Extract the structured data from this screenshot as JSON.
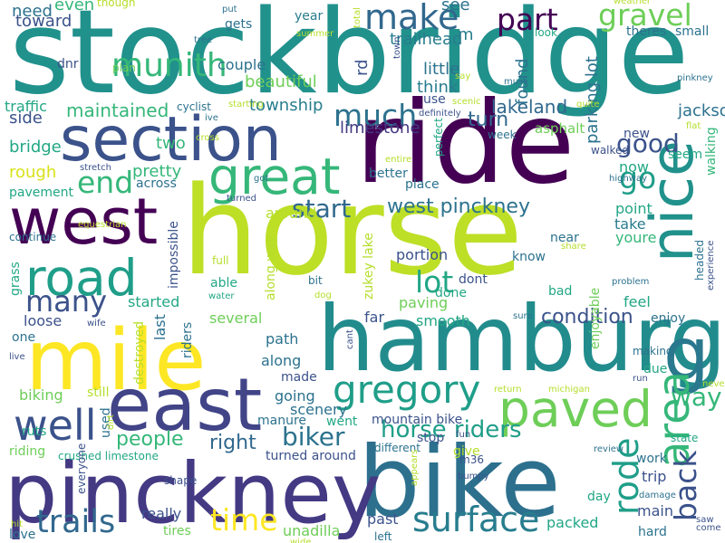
{
  "words": [
    {
      "text": "stockbridge",
      "color": "#21918c"
    },
    {
      "text": "horse",
      "color": "#bddf26"
    },
    {
      "text": "ride",
      "color": "#440154"
    },
    {
      "text": "hamburg",
      "color": "#228c8d"
    },
    {
      "text": "mile",
      "color": "#fde725"
    },
    {
      "text": "bike",
      "color": "#2d708e"
    },
    {
      "text": "pinckney",
      "color": "#443983"
    },
    {
      "text": "section",
      "color": "#3b528b"
    },
    {
      "text": "west",
      "color": "#440154"
    },
    {
      "text": "east",
      "color": "#414487"
    },
    {
      "text": "road",
      "color": "#1f9e89"
    },
    {
      "text": "nice",
      "color": "#21918c"
    },
    {
      "text": "g",
      "color": "#2a788e"
    },
    {
      "text": "great",
      "color": "#35b779"
    },
    {
      "text": "paved",
      "color": "#6ece58"
    },
    {
      "text": "gregory",
      "color": "#1f9e89"
    },
    {
      "text": "munith",
      "color": "#35b779"
    },
    {
      "text": "area",
      "color": "#35b779"
    },
    {
      "text": "well",
      "color": "#3b528b"
    },
    {
      "text": "rode",
      "color": "#1f9e89"
    },
    {
      "text": "surface",
      "color": "#287d8e"
    },
    {
      "text": "trails",
      "color": "#31688e"
    },
    {
      "text": "time",
      "color": "#fde725"
    },
    {
      "text": "make",
      "color": "#31688e"
    },
    {
      "text": "part",
      "color": "#440154"
    },
    {
      "text": "gravel",
      "color": "#6ece58"
    },
    {
      "text": "much",
      "color": "#2c728e"
    },
    {
      "text": "back",
      "color": "#3b528b"
    },
    {
      "text": "end",
      "color": "#35b779"
    },
    {
      "text": "go",
      "color": "#1f9e89"
    },
    {
      "text": "good",
      "color": "#3b528b"
    },
    {
      "text": "way",
      "color": "#35b779"
    },
    {
      "text": "horse riders",
      "color": "#1f9e89"
    },
    {
      "text": "biker",
      "color": "#2c728e"
    },
    {
      "text": "start",
      "color": "#31688e"
    },
    {
      "text": "lot",
      "color": "#22a785"
    },
    {
      "text": "many",
      "color": "#3b528b"
    },
    {
      "text": "west pinckney",
      "color": "#2c728e"
    },
    {
      "text": "condition",
      "color": "#3b528b"
    },
    {
      "text": "people",
      "color": "#35b779"
    },
    {
      "text": "right",
      "color": "#31688e"
    },
    {
      "text": "lakeland",
      "color": "#31688e"
    },
    {
      "text": "turn",
      "color": "#31688e"
    },
    {
      "text": "jackson",
      "color": "#2c728e"
    },
    {
      "text": "limestone",
      "color": "#443983"
    },
    {
      "text": "township",
      "color": "#287d8e"
    },
    {
      "text": "maintained",
      "color": "#35b779"
    },
    {
      "text": "beautiful",
      "color": "#6ece58"
    },
    {
      "text": "toward",
      "color": "#3b528b"
    },
    {
      "text": "need",
      "color": "#2c728e"
    },
    {
      "text": "even",
      "color": "#35b779"
    },
    {
      "text": "though",
      "color": "#b5de2b"
    },
    {
      "text": "see",
      "color": "#2c728e"
    },
    {
      "text": "rd",
      "color": "#3b528b"
    },
    {
      "text": "m",
      "color": "#287d8e"
    },
    {
      "text": "trailhead",
      "color": "#287d8e"
    },
    {
      "text": "little",
      "color": "#2c728e"
    },
    {
      "text": "think",
      "color": "#287d8e"
    },
    {
      "text": "found",
      "color": "#2c728e"
    },
    {
      "text": "parking lot",
      "color": "#2c728e"
    },
    {
      "text": "theres",
      "color": "#2c728e"
    },
    {
      "text": "small",
      "color": "#2c728e"
    },
    {
      "text": "year",
      "color": "#287d8e"
    },
    {
      "text": "gets",
      "color": "#2c728e"
    },
    {
      "text": "couple",
      "color": "#2c728e"
    },
    {
      "text": "side",
      "color": "#3b528b"
    },
    {
      "text": "two",
      "color": "#35b779"
    },
    {
      "text": "pretty",
      "color": "#35b779"
    },
    {
      "text": "rough",
      "color": "#d8e219"
    },
    {
      "text": "bridge",
      "color": "#22a785"
    },
    {
      "text": "traffic",
      "color": "#22a785"
    },
    {
      "text": "dnr",
      "color": "#3b528b"
    },
    {
      "text": "plan",
      "color": "#6ece58"
    },
    {
      "text": "cyclist",
      "color": "#2c728e"
    },
    {
      "text": "asphalt",
      "color": "#6ece58"
    },
    {
      "text": "week",
      "color": "#2c728e"
    },
    {
      "text": "new",
      "color": "#3b528b"
    },
    {
      "text": "now",
      "color": "#22a785"
    },
    {
      "text": "seem",
      "color": "#22a785"
    },
    {
      "text": "walking",
      "color": "#35b779"
    },
    {
      "text": "pavement",
      "color": "#22a785"
    },
    {
      "text": "across",
      "color": "#2c728e"
    },
    {
      "text": "place",
      "color": "#2c728e"
    },
    {
      "text": "better",
      "color": "#2c728e"
    },
    {
      "text": "around",
      "color": "#b5de2b"
    },
    {
      "text": "point",
      "color": "#22a785"
    },
    {
      "text": "take",
      "color": "#287d8e"
    },
    {
      "text": "youre",
      "color": "#35b779"
    },
    {
      "text": "continue",
      "color": "#2c728e"
    },
    {
      "text": "impossible",
      "color": "#3b528b"
    },
    {
      "text": "along way",
      "color": "#b5de2b"
    },
    {
      "text": "zukey lake",
      "color": "#b5de2b"
    },
    {
      "text": "bad",
      "color": "#22a785"
    },
    {
      "text": "know",
      "color": "#2c728e"
    },
    {
      "text": "headed",
      "color": "#2c728e"
    },
    {
      "text": "portion",
      "color": "#3b528b"
    },
    {
      "text": "done",
      "color": "#22a785"
    },
    {
      "text": "dont",
      "color": "#3b528b"
    },
    {
      "text": "paving",
      "color": "#6ece58"
    },
    {
      "text": "near",
      "color": "#2c728e"
    },
    {
      "text": "feel",
      "color": "#22a785"
    },
    {
      "text": "full",
      "color": "#b5de2b"
    },
    {
      "text": "able",
      "color": "#22a785"
    },
    {
      "text": "bit",
      "color": "#2c728e"
    },
    {
      "text": "loose",
      "color": "#3b528b"
    },
    {
      "text": "started",
      "color": "#22a785"
    },
    {
      "text": "several",
      "color": "#6ece58"
    },
    {
      "text": "far",
      "color": "#3b528b"
    },
    {
      "text": "smooth",
      "color": "#22a785"
    },
    {
      "text": "enjoy",
      "color": "#2c728e"
    },
    {
      "text": "one",
      "color": "#2c728e"
    },
    {
      "text": "last",
      "color": "#2c728e"
    },
    {
      "text": "path",
      "color": "#2c728e"
    },
    {
      "text": "along",
      "color": "#2c728e"
    },
    {
      "text": "made",
      "color": "#3b528b"
    },
    {
      "text": "due",
      "color": "#22a785"
    },
    {
      "text": "making",
      "color": "#2c728e"
    },
    {
      "text": "enjoyable",
      "color": "#6ece58"
    },
    {
      "text": "biking",
      "color": "#6ece58"
    },
    {
      "text": "still",
      "color": "#b5de2b"
    },
    {
      "text": "ruts",
      "color": "#22a785"
    },
    {
      "text": "going",
      "color": "#2c728e"
    },
    {
      "text": "scenery",
      "color": "#2c728e"
    },
    {
      "text": "went",
      "color": "#22a785"
    },
    {
      "text": "mountain bike",
      "color": "#3b528b"
    },
    {
      "text": "manure",
      "color": "#2c728e"
    },
    {
      "text": "used",
      "color": "#2c728e"
    },
    {
      "text": "riding",
      "color": "#6ece58"
    },
    {
      "text": "crushed limestone",
      "color": "#22a785"
    },
    {
      "text": "turned around",
      "color": "#3b528b"
    },
    {
      "text": "stop",
      "color": "#3b528b"
    },
    {
      "text": "give",
      "color": "#b5de2b"
    },
    {
      "text": "state",
      "color": "#22a785"
    },
    {
      "text": "work",
      "color": "#2c728e"
    },
    {
      "text": "trip",
      "color": "#3b528b"
    },
    {
      "text": "day",
      "color": "#22a785"
    },
    {
      "text": "main",
      "color": "#3b528b"
    },
    {
      "text": "hard",
      "color": "#2c728e"
    },
    {
      "text": "packed",
      "color": "#22a785"
    },
    {
      "text": "really",
      "color": "#3b528b"
    },
    {
      "text": "tires",
      "color": "#6ece58"
    },
    {
      "text": "unadilla",
      "color": "#6ece58"
    },
    {
      "text": "past",
      "color": "#3b528b"
    },
    {
      "text": "love",
      "color": "#2c728e"
    },
    {
      "text": "left",
      "color": "#2c728e"
    },
    {
      "text": "shape",
      "color": "#3b528b"
    },
    {
      "text": "different",
      "color": "#2c728e"
    },
    {
      "text": "everyone",
      "color": "#3b528b"
    },
    {
      "text": "weather",
      "color": "#b5de2b"
    },
    {
      "text": "put",
      "color": "#2c728e"
    },
    {
      "text": "tree",
      "color": "#2c728e"
    },
    {
      "text": "summer",
      "color": "#b5de2b"
    },
    {
      "text": "say",
      "color": "#b5de2b"
    },
    {
      "text": "look",
      "color": "#22a785"
    },
    {
      "text": "must",
      "color": "#2c728e"
    },
    {
      "text": "pinkney",
      "color": "#2c728e"
    },
    {
      "text": "starting",
      "color": "#b5de2b"
    },
    {
      "text": "ive",
      "color": "#2c728e"
    },
    {
      "text": "use",
      "color": "#3b528b"
    },
    {
      "text": "scenic",
      "color": "#b5de2b"
    },
    {
      "text": "definitely",
      "color": "#3b528b"
    },
    {
      "text": "quite",
      "color": "#b5de2b"
    },
    {
      "text": "flat",
      "color": "#b5de2b"
    },
    {
      "text": "cross",
      "color": "#b5de2b"
    },
    {
      "text": "entire",
      "color": "#b5de2b"
    },
    {
      "text": "perfect",
      "color": "#22a785"
    },
    {
      "text": "walked",
      "color": "#3b528b"
    },
    {
      "text": "stretch",
      "color": "#3b528b"
    },
    {
      "text": "got",
      "color": "#2c728e"
    },
    {
      "text": "highway",
      "color": "#2c728e"
    },
    {
      "text": "turned",
      "color": "#3b528b"
    },
    {
      "text": "share",
      "color": "#b5de2b"
    },
    {
      "text": "equestrian",
      "color": "#b5de2b"
    },
    {
      "text": "experience",
      "color": "#3b528b"
    },
    {
      "text": "grass",
      "color": "#22a785"
    },
    {
      "text": "dog",
      "color": "#b5de2b"
    },
    {
      "text": "water",
      "color": "#22a785"
    },
    {
      "text": "problem",
      "color": "#2c728e"
    },
    {
      "text": "wife",
      "color": "#3b528b"
    },
    {
      "text": "sure",
      "color": "#2c728e"
    },
    {
      "text": "live",
      "color": "#3b528b"
    },
    {
      "text": "destroyed",
      "color": "#b5de2b"
    },
    {
      "text": "riders",
      "color": "#2c728e"
    },
    {
      "text": "cant",
      "color": "#3b528b"
    },
    {
      "text": "return",
      "color": "#b5de2b"
    },
    {
      "text": "michigan",
      "color": "#b5de2b"
    },
    {
      "text": "run",
      "color": "#3b528b"
    },
    {
      "text": "never",
      "color": "#b5de2b"
    },
    {
      "text": "dirt",
      "color": "#b5de2b"
    },
    {
      "text": "fun",
      "color": "#3b528b"
    },
    {
      "text": "m36",
      "color": "#3b528b"
    },
    {
      "text": "bumpy",
      "color": "#3b528b"
    },
    {
      "text": "appears",
      "color": "#b5de2b"
    },
    {
      "text": "review",
      "color": "#2c728e"
    },
    {
      "text": "damage",
      "color": "#2c728e"
    },
    {
      "text": "saw",
      "color": "#3b528b"
    },
    {
      "text": "come",
      "color": "#3b528b"
    },
    {
      "text": "hit",
      "color": "#b5de2b"
    },
    {
      "text": "wide",
      "color": "#b5de2b"
    },
    {
      "text": "total",
      "color": "#b5de2b"
    },
    {
      "text": "town",
      "color": "#3b528b"
    }
  ]
}
